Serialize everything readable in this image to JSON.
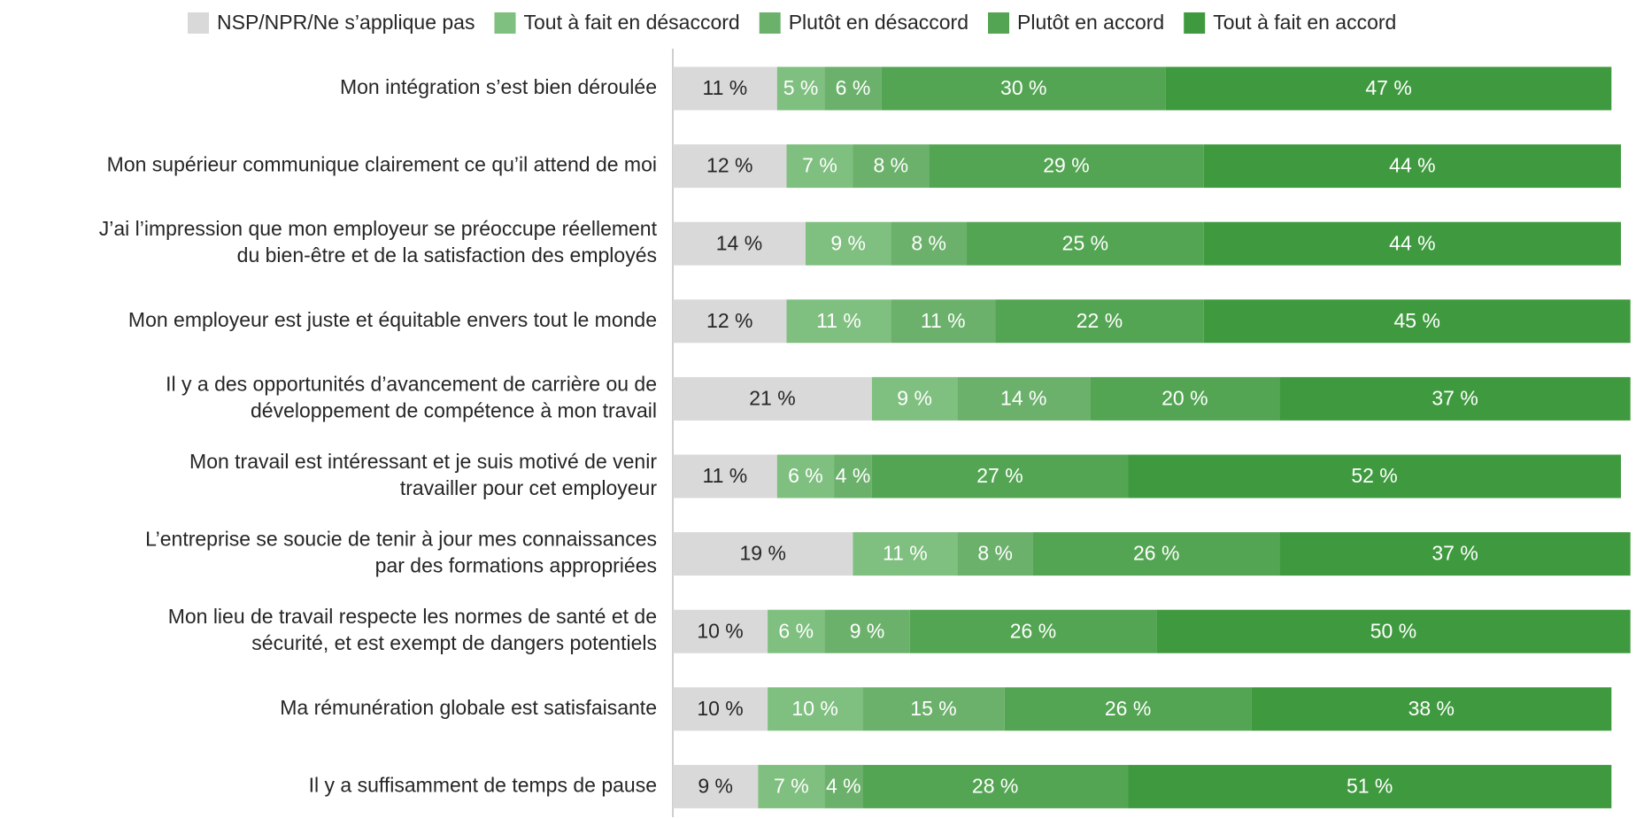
{
  "chart_data": {
    "type": "stacked-bar-horizontal",
    "categories": [
      "Mon intégration s’est bien déroulée",
      "Mon supérieur communique clairement ce qu’il attend de moi",
      "J’ai l’impression que mon employeur se préoccupe réellement\ndu bien-être et de la satisfaction des employés",
      "Mon employeur est juste et équitable envers tout le monde",
      "Il y a des opportunités d’avancement de carrière ou de\ndéveloppement de compétence à mon travail",
      "Mon travail est intéressant et je suis motivé de venir\ntravailler pour cet employeur",
      "L’entreprise se soucie de tenir à jour mes connaissances\npar des formations appropriées",
      "Mon lieu de travail respecte les normes de santé et de\nsécurité, et est exempt de dangers potentiels",
      "Ma rémunération globale est satisfaisante",
      "Il y a suffisamment de temps de pause"
    ],
    "series": [
      {
        "name": "NSP/NPR/Ne s’applique pas",
        "color": "#d9d9d9",
        "values": [
          11,
          12,
          14,
          12,
          21,
          11,
          19,
          10,
          10,
          9
        ],
        "value_labels": [
          "11 %",
          "12 %",
          "14 %",
          "12 %",
          "21 %",
          "11 %",
          "19 %",
          "10 %",
          "10 %",
          "9 %"
        ]
      },
      {
        "name": "Tout à fait en désaccord",
        "color": "#7fbf7f",
        "values": [
          5,
          7,
          9,
          11,
          9,
          6,
          11,
          6,
          10,
          7
        ],
        "value_labels": [
          "5 %",
          "7 %",
          "9 %",
          "11 %",
          "9 %",
          "6 %",
          "11 %",
          "6 %",
          "10 %",
          "7 %"
        ]
      },
      {
        "name": "Plutôt en désaccord",
        "color": "#6bb16b",
        "values": [
          6,
          8,
          8,
          11,
          14,
          4,
          8,
          9,
          15,
          4
        ],
        "value_labels": [
          "6 %",
          "8 %",
          "8 %",
          "11 %",
          "14 %",
          "4 %",
          "8 %",
          "9 %",
          "15 %",
          "4 %"
        ]
      },
      {
        "name": "Plutôt en accord",
        "color": "#53a553",
        "values": [
          30,
          29,
          25,
          22,
          20,
          27,
          26,
          26,
          26,
          28
        ],
        "value_labels": [
          "30 %",
          "29 %",
          "25 %",
          "22 %",
          "20 %",
          "27 %",
          "26 %",
          "26 %",
          "26 %",
          "28 %"
        ]
      },
      {
        "name": "Tout à fait en accord",
        "color": "#3f9a3f",
        "values": [
          47,
          44,
          44,
          45,
          37,
          52,
          37,
          50,
          38,
          51
        ],
        "value_labels": [
          "47 %",
          "44 %",
          "44 %",
          "45 %",
          "37 %",
          "52 %",
          "37 %",
          "50 %",
          "38 %",
          "51 %"
        ]
      }
    ],
    "xlim": [
      0,
      100
    ]
  }
}
